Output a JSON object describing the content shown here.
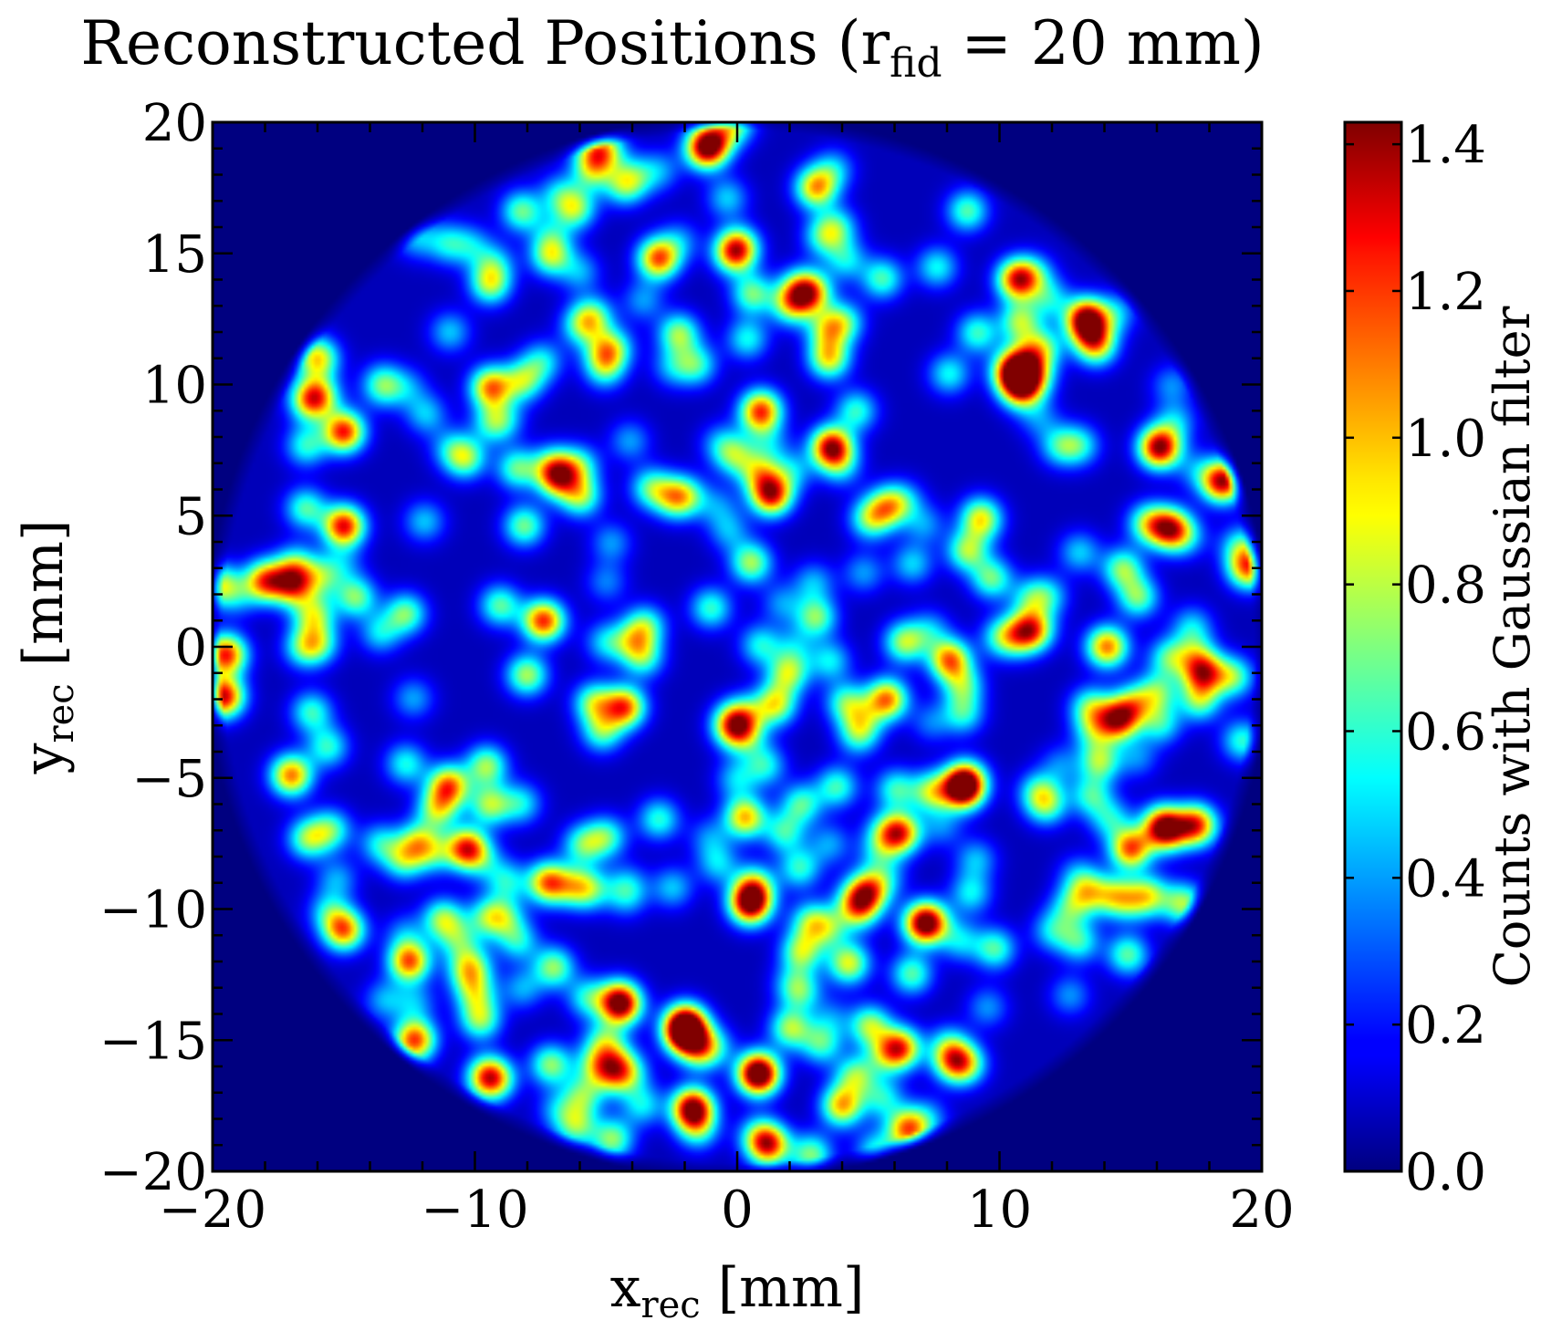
{
  "chart_data": {
    "type": "heatmap",
    "title": "Reconstructed Positions (r",
    "title_sub": "fid",
    "title_tail": " = 20 mm)",
    "xlabel_main": "x",
    "xlabel_sub": "rec",
    "xlabel_tail": " [mm]",
    "ylabel_main": "y",
    "ylabel_sub": "rec",
    "ylabel_tail": " [mm]",
    "colorbar_label": "Counts with Gaussian filter",
    "xlim": [
      -20,
      20
    ],
    "ylim": [
      -20,
      20
    ],
    "clim": [
      0.0,
      1.43
    ],
    "xticks": [
      -20,
      -10,
      0,
      10,
      20
    ],
    "xtick_labels": [
      "−20",
      "−10",
      "0",
      "10",
      "20"
    ],
    "yticks": [
      -20,
      -15,
      -10,
      -5,
      0,
      5,
      10,
      15,
      20
    ],
    "ytick_labels": [
      "−20",
      "−15",
      "−10",
      "−5",
      "0",
      "5",
      "10",
      "15",
      "20"
    ],
    "cticks": [
      0.0,
      0.2,
      0.4,
      0.6,
      0.8,
      1.0,
      1.2,
      1.4
    ],
    "ctick_labels": [
      "0.0",
      "0.2",
      "0.4",
      "0.6",
      "0.8",
      "1.0",
      "1.2",
      "1.4"
    ],
    "colormap": "jet",
    "colors": {
      "background": "#00007f",
      "axes": "#000000"
    },
    "fiducial_radius_mm": 20,
    "hotspots": [
      {
        "x": -1.2,
        "y": 19.0,
        "v": 1.15
      },
      {
        "x": 3.0,
        "y": 17.5,
        "v": 0.9
      },
      {
        "x": -3.0,
        "y": 14.8,
        "v": 1.05
      },
      {
        "x": 10.7,
        "y": 14.0,
        "v": 1.15
      },
      {
        "x": 13.3,
        "y": 12.5,
        "v": 1.3
      },
      {
        "x": -16.0,
        "y": 11.0,
        "v": 0.85
      },
      {
        "x": 10.5,
        "y": 10.5,
        "v": 1.0
      },
      {
        "x": 3.5,
        "y": 11.0,
        "v": 0.8
      },
      {
        "x": -15.0,
        "y": 8.2,
        "v": 1.15
      },
      {
        "x": 3.6,
        "y": 7.6,
        "v": 1.3
      },
      {
        "x": 16.1,
        "y": 7.6,
        "v": 1.35
      },
      {
        "x": 18.5,
        "y": 6.3,
        "v": 1.3
      },
      {
        "x": 1.3,
        "y": 5.8,
        "v": 1.2
      },
      {
        "x": -15.0,
        "y": 4.6,
        "v": 1.2
      },
      {
        "x": 16.5,
        "y": 4.5,
        "v": 1.1
      },
      {
        "x": -18.0,
        "y": 2.5,
        "v": 1.0
      },
      {
        "x": 19.5,
        "y": 3.0,
        "v": 1.0
      },
      {
        "x": -19.5,
        "y": -0.3,
        "v": 1.15
      },
      {
        "x": -19.6,
        "y": -1.9,
        "v": 1.25
      },
      {
        "x": 8.1,
        "y": -0.5,
        "v": 1.0
      },
      {
        "x": 14.1,
        "y": 0.0,
        "v": 1.0
      },
      {
        "x": -4.3,
        "y": -2.3,
        "v": 1.05
      },
      {
        "x": 5.7,
        "y": -2.0,
        "v": 1.0
      },
      {
        "x": 14.5,
        "y": -2.8,
        "v": 1.1
      },
      {
        "x": -17.0,
        "y": -4.9,
        "v": 1.0
      },
      {
        "x": -11.0,
        "y": -5.3,
        "v": 1.0
      },
      {
        "x": 8.6,
        "y": -5.4,
        "v": 1.35
      },
      {
        "x": -10.3,
        "y": -7.7,
        "v": 1.15
      },
      {
        "x": 6.2,
        "y": -7.1,
        "v": 1.05
      },
      {
        "x": 17.5,
        "y": -6.8,
        "v": 1.1
      },
      {
        "x": 0.3,
        "y": -6.5,
        "v": 0.9
      },
      {
        "x": 15.0,
        "y": -7.7,
        "v": 1.05
      },
      {
        "x": -7.2,
        "y": -9.0,
        "v": 1.0
      },
      {
        "x": 0.5,
        "y": -9.8,
        "v": 1.35
      },
      {
        "x": 5.0,
        "y": -9.3,
        "v": 0.9
      },
      {
        "x": -15.0,
        "y": -10.8,
        "v": 1.0
      },
      {
        "x": -12.5,
        "y": -12.0,
        "v": 1.05
      },
      {
        "x": 7.3,
        "y": -10.5,
        "v": 0.9
      },
      {
        "x": -4.5,
        "y": -13.5,
        "v": 0.9
      },
      {
        "x": -12.3,
        "y": -15.0,
        "v": 1.1
      },
      {
        "x": -2.0,
        "y": -14.8,
        "v": 1.05
      },
      {
        "x": 6.2,
        "y": -15.3,
        "v": 1.05
      },
      {
        "x": 0.8,
        "y": -16.3,
        "v": 1.0
      },
      {
        "x": -9.5,
        "y": -16.4,
        "v": 0.95
      },
      {
        "x": -1.7,
        "y": -17.6,
        "v": 1.4
      },
      {
        "x": 4.0,
        "y": -17.5,
        "v": 0.9
      },
      {
        "x": 6.5,
        "y": -18.4,
        "v": 1.0
      },
      {
        "x": 1.2,
        "y": -19.0,
        "v": 1.05
      }
    ]
  }
}
